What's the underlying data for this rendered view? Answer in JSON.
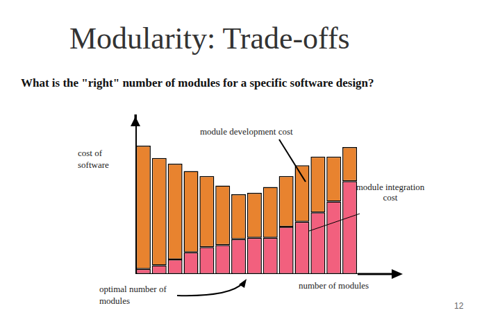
{
  "chart_data": {
    "type": "bar",
    "title": "Modularity: Trade-offs",
    "subtitle": "What is the \"right\" number of modules for a specific software design?",
    "x_label": "number of modules",
    "y_label": "cost of software",
    "annotations": [
      "optimal number of modules"
    ],
    "categories": [
      null,
      null,
      null,
      null,
      null,
      null,
      null,
      null,
      null,
      null,
      null,
      null,
      null,
      null
    ],
    "series": [
      {
        "name": "module integration cost",
        "color": "#f2607e",
        "values": [
          7,
          12,
          20,
          30,
          37,
          40,
          48,
          50,
          50,
          65,
          72,
          85,
          100,
          128
        ]
      },
      {
        "name": "module development cost",
        "color": "#e8832f",
        "values": [
          170,
          148,
          132,
          112,
          98,
          82,
          62,
          62,
          70,
          70,
          78,
          77,
          62,
          47
        ]
      }
    ],
    "stacked": true,
    "ylim": [
      0,
      220
    ],
    "grid": false,
    "tick_labels": false
  },
  "page_number": 12
}
